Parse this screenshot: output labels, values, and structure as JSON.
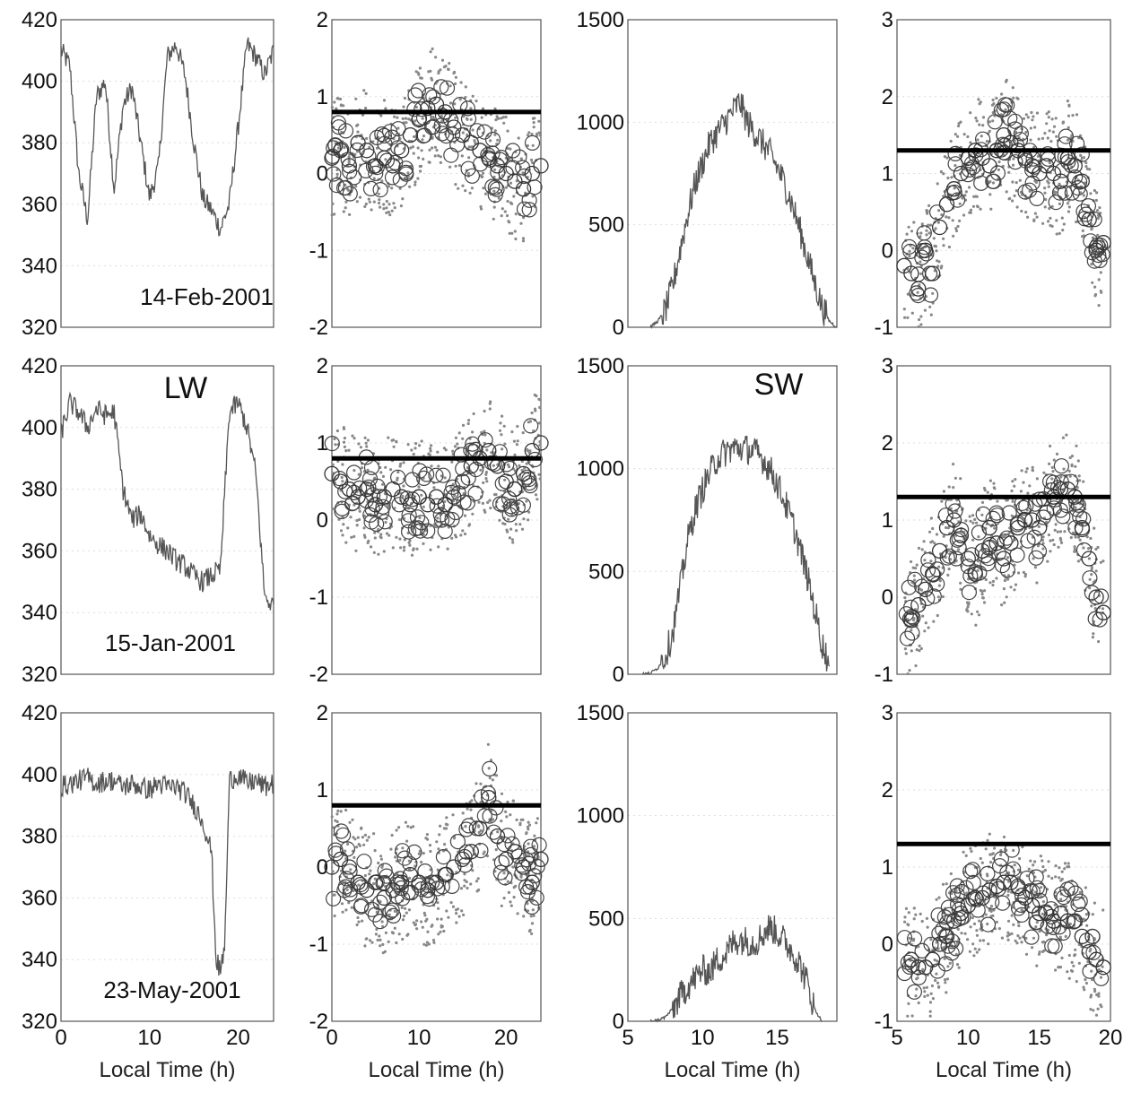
{
  "chart_data": [
    {
      "id": "r0c0",
      "type": "line",
      "row": 0,
      "col": 0,
      "xlim": [
        0,
        24
      ],
      "ylim": [
        320,
        420
      ],
      "yticks": [
        320,
        340,
        360,
        380,
        400,
        420
      ],
      "xticks": [],
      "xlabel": "",
      "annotation": "14-Feb-2001",
      "series": [
        {
          "x": [
            0,
            1,
            2,
            3,
            4,
            5,
            6,
            7,
            8,
            9,
            10,
            11,
            12,
            13,
            14,
            15,
            16,
            17,
            18,
            19,
            20,
            21,
            22,
            23,
            24
          ],
          "values": [
            410,
            405,
            370,
            355,
            395,
            400,
            365,
            392,
            398,
            380,
            362,
            372,
            408,
            412,
            402,
            380,
            362,
            358,
            352,
            360,
            385,
            412,
            408,
            402,
            410
          ]
        }
      ]
    },
    {
      "id": "r0c1",
      "type": "scatter",
      "row": 0,
      "col": 1,
      "xlim": [
        0,
        24
      ],
      "ylim": [
        -2,
        2
      ],
      "yticks": [
        -2,
        -1,
        0,
        1,
        2
      ],
      "xticks": [],
      "xlabel": "",
      "threshold": 0.8,
      "series": [
        {
          "x": [
            0,
            1,
            2,
            3,
            4,
            5,
            6,
            7,
            8,
            9,
            10,
            11,
            12,
            13,
            14,
            15,
            16,
            17,
            18,
            19,
            20,
            21,
            22,
            23,
            24
          ],
          "values": [
            0.2,
            0.3,
            0.1,
            0.4,
            0.3,
            0.1,
            0.2,
            0.1,
            0.3,
            0.5,
            0.7,
            0.85,
            0.9,
            0.8,
            0.6,
            0.5,
            0.4,
            0.3,
            0.2,
            0.1,
            0.0,
            -0.1,
            -0.2,
            0.0,
            0.1
          ]
        }
      ]
    },
    {
      "id": "r0c2",
      "type": "line",
      "row": 0,
      "col": 2,
      "xlim": [
        5,
        19
      ],
      "ylim": [
        0,
        1500
      ],
      "yticks": [
        0,
        500,
        1000,
        1500
      ],
      "xticks": [],
      "xlabel": "",
      "annotation": "",
      "series": [
        {
          "x": [
            6.5,
            7,
            7.5,
            8,
            8.5,
            9,
            9.5,
            10,
            10.5,
            11,
            11.5,
            12,
            12.5,
            13,
            13.5,
            14,
            14.5,
            15,
            15.5,
            16,
            16.5,
            17,
            17.5,
            18,
            18.5,
            19
          ],
          "values": [
            0,
            30,
            80,
            200,
            380,
            550,
            700,
            800,
            900,
            950,
            1000,
            1050,
            1100,
            1000,
            950,
            900,
            850,
            780,
            700,
            600,
            480,
            350,
            220,
            100,
            30,
            0
          ]
        }
      ]
    },
    {
      "id": "r0c3",
      "type": "scatter",
      "row": 0,
      "col": 3,
      "xlim": [
        5,
        20
      ],
      "ylim": [
        -1,
        3
      ],
      "yticks": [
        -1,
        0,
        1,
        2,
        3
      ],
      "xticks": [],
      "xlabel": "",
      "threshold": 1.3,
      "series": [
        {
          "x": [
            5.5,
            6,
            6.5,
            7,
            7.5,
            8,
            8.5,
            9,
            9.5,
            10,
            10.5,
            11,
            11.5,
            12,
            12.5,
            13,
            13.5,
            14,
            14.5,
            15,
            15.5,
            16,
            16.5,
            17,
            17.5,
            18,
            18.5,
            19,
            19.5
          ],
          "values": [
            -0.2,
            -0.3,
            -0.5,
            0.0,
            -0.3,
            0.3,
            0.6,
            0.8,
            1.0,
            1.2,
            1.3,
            1.2,
            1.1,
            1.3,
            1.5,
            1.4,
            1.3,
            1.2,
            1.1,
            1.0,
            1.1,
            1.0,
            0.9,
            1.2,
            1.1,
            0.9,
            0.4,
            0.0,
            0.1
          ]
        }
      ]
    },
    {
      "id": "r1c0",
      "type": "line",
      "row": 1,
      "col": 0,
      "xlim": [
        0,
        24
      ],
      "ylim": [
        320,
        420
      ],
      "yticks": [
        320,
        340,
        360,
        380,
        400,
        420
      ],
      "xticks": [],
      "xlabel": "",
      "annotation": "15-Jan-2001",
      "label": "LW",
      "series": [
        {
          "x": [
            0,
            1,
            2,
            3,
            4,
            5,
            6,
            7,
            8,
            9,
            10,
            11,
            12,
            13,
            14,
            15,
            16,
            17,
            18,
            19,
            20,
            21,
            22,
            23,
            24
          ],
          "values": [
            398,
            408,
            405,
            400,
            406,
            404,
            405,
            380,
            370,
            372,
            365,
            362,
            360,
            357,
            355,
            352,
            350,
            352,
            354,
            405,
            408,
            400,
            385,
            345,
            342
          ]
        }
      ]
    },
    {
      "id": "r1c1",
      "type": "scatter",
      "row": 1,
      "col": 1,
      "xlim": [
        0,
        24
      ],
      "ylim": [
        -2,
        2
      ],
      "yticks": [
        -2,
        -1,
        0,
        1,
        2
      ],
      "xticks": [],
      "xlabel": "",
      "threshold": 0.8,
      "series": [
        {
          "x": [
            0,
            1,
            2,
            3,
            4,
            5,
            6,
            7,
            8,
            9,
            10,
            11,
            12,
            13,
            14,
            15,
            16,
            17,
            18,
            19,
            20,
            21,
            22,
            23,
            24
          ],
          "values": [
            0.6,
            0.5,
            0.4,
            0.3,
            0.4,
            0.2,
            0.3,
            0.4,
            0.3,
            0.2,
            0.3,
            0.2,
            0.3,
            0.2,
            0.3,
            0.5,
            0.7,
            0.8,
            0.9,
            0.7,
            0.5,
            0.4,
            0.6,
            0.9,
            1.0
          ]
        }
      ]
    },
    {
      "id": "r1c2",
      "type": "line",
      "row": 1,
      "col": 2,
      "xlim": [
        5,
        19
      ],
      "ylim": [
        0,
        1500
      ],
      "yticks": [
        0,
        500,
        1000,
        1500
      ],
      "xticks": [],
      "xlabel": "",
      "annotation": "",
      "label": "SW",
      "series": [
        {
          "x": [
            6,
            6.5,
            7,
            7.5,
            8,
            8.5,
            9,
            9.5,
            10,
            10.5,
            11,
            11.5,
            12,
            12.5,
            13,
            13.5,
            14,
            14.5,
            15,
            15.5,
            16,
            16.5,
            17,
            17.5,
            18,
            18.5
          ],
          "values": [
            0,
            5,
            30,
            90,
            200,
            420,
            650,
            800,
            900,
            980,
            1050,
            1080,
            1100,
            1100,
            1095,
            1080,
            1050,
            1000,
            930,
            840,
            740,
            620,
            480,
            320,
            150,
            40
          ]
        }
      ]
    },
    {
      "id": "r1c3",
      "type": "scatter",
      "row": 1,
      "col": 3,
      "xlim": [
        5,
        20
      ],
      "ylim": [
        -1,
        3
      ],
      "yticks": [
        -1,
        0,
        1,
        2,
        3
      ],
      "xticks": [],
      "xlabel": "",
      "threshold": 1.3,
      "series": [
        {
          "x": [
            6,
            6.5,
            7,
            7.5,
            8,
            8.5,
            9,
            9.5,
            10,
            10.5,
            11,
            11.5,
            12,
            12.5,
            13,
            13.5,
            14,
            14.5,
            15,
            15.5,
            16,
            16.5,
            17,
            17.5,
            18,
            18.5,
            19,
            19.5
          ],
          "values": [
            -0.3,
            -0.1,
            0.1,
            0.3,
            0.6,
            0.9,
            1.0,
            0.8,
            0.5,
            0.3,
            0.6,
            0.9,
            0.7,
            0.5,
            0.7,
            0.9,
            1.0,
            1.0,
            0.9,
            1.1,
            1.3,
            1.4,
            1.4,
            1.3,
            0.9,
            0.5,
            0.0,
            -0.2
          ]
        }
      ]
    },
    {
      "id": "r2c0",
      "type": "line",
      "row": 2,
      "col": 0,
      "xlim": [
        0,
        24
      ],
      "ylim": [
        320,
        420
      ],
      "yticks": [
        320,
        340,
        360,
        380,
        400,
        420
      ],
      "xticks": [
        0,
        10,
        20
      ],
      "xlabel": "Local Time (h)",
      "annotation": "23-May-2001",
      "series": [
        {
          "x": [
            0,
            1,
            2,
            3,
            4,
            5,
            6,
            7,
            8,
            9,
            10,
            11,
            12,
            13,
            14,
            15,
            16,
            17,
            17.5,
            18,
            18.5,
            19,
            20,
            21,
            22,
            23,
            24
          ],
          "values": [
            396,
            397,
            398,
            399,
            397,
            398,
            398,
            396,
            397,
            396,
            395,
            397,
            396,
            396,
            394,
            390,
            385,
            375,
            340,
            336,
            345,
            398,
            400,
            397,
            398,
            396,
            397
          ]
        }
      ]
    },
    {
      "id": "r2c1",
      "type": "scatter",
      "row": 2,
      "col": 1,
      "xlim": [
        0,
        24
      ],
      "ylim": [
        -2,
        2
      ],
      "yticks": [
        -2,
        -1,
        0,
        1,
        2
      ],
      "xticks": [
        0,
        10,
        20
      ],
      "xlabel": "Local Time (h)",
      "threshold": 0.8,
      "series": [
        {
          "x": [
            0,
            1,
            2,
            3,
            4,
            5,
            6,
            7,
            8,
            9,
            10,
            11,
            12,
            13,
            14,
            15,
            16,
            17,
            18,
            19,
            20,
            21,
            22,
            23,
            24
          ],
          "values": [
            0.0,
            0.1,
            0.0,
            -0.2,
            -0.3,
            -0.2,
            -0.4,
            -0.3,
            -0.2,
            -0.1,
            -0.2,
            -0.3,
            -0.2,
            -0.1,
            0.0,
            0.1,
            0.2,
            0.5,
            0.9,
            0.4,
            0.1,
            0.2,
            0.0,
            -0.2,
            0.1
          ]
        }
      ]
    },
    {
      "id": "r2c2",
      "type": "line",
      "row": 2,
      "col": 2,
      "xlim": [
        5,
        19
      ],
      "ylim": [
        0,
        1500
      ],
      "yticks": [
        0,
        500,
        1000,
        1500
      ],
      "xticks": [
        5,
        10,
        15
      ],
      "xlabel": "Local Time (h)",
      "annotation": "",
      "series": [
        {
          "x": [
            6.5,
            7,
            7.5,
            8,
            8.5,
            9,
            9.5,
            10,
            10.5,
            11,
            11.5,
            12,
            12.5,
            13,
            13.5,
            14,
            14.5,
            15,
            15.5,
            16,
            16.5,
            17,
            17.5,
            18
          ],
          "values": [
            0,
            5,
            20,
            60,
            120,
            170,
            210,
            250,
            240,
            300,
            320,
            380,
            400,
            390,
            380,
            420,
            460,
            430,
            390,
            340,
            280,
            190,
            60,
            0
          ]
        }
      ]
    },
    {
      "id": "r2c3",
      "type": "scatter",
      "row": 2,
      "col": 3,
      "xlim": [
        5,
        20
      ],
      "ylim": [
        -1,
        3
      ],
      "yticks": [
        -1,
        0,
        1,
        2,
        3
      ],
      "xticks": [
        5,
        10,
        15,
        20
      ],
      "xlabel": "Local Time (h)",
      "threshold": 1.3,
      "series": [
        {
          "x": [
            6,
            6.5,
            7,
            7.5,
            8,
            8.5,
            9,
            9.5,
            10,
            10.5,
            11,
            11.5,
            12,
            12.5,
            13,
            13.5,
            14,
            14.5,
            15,
            15.5,
            16,
            16.5,
            17,
            17.5,
            18,
            18.5,
            19,
            19.5
          ],
          "values": [
            -0.2,
            -0.3,
            -0.3,
            -0.2,
            0.0,
            0.1,
            0.3,
            0.4,
            0.5,
            0.6,
            0.6,
            0.7,
            0.75,
            0.8,
            0.8,
            0.75,
            0.6,
            0.5,
            0.4,
            0.4,
            0.3,
            0.4,
            0.3,
            0.3,
            0.1,
            -0.1,
            -0.2,
            -0.3
          ]
        }
      ]
    }
  ]
}
